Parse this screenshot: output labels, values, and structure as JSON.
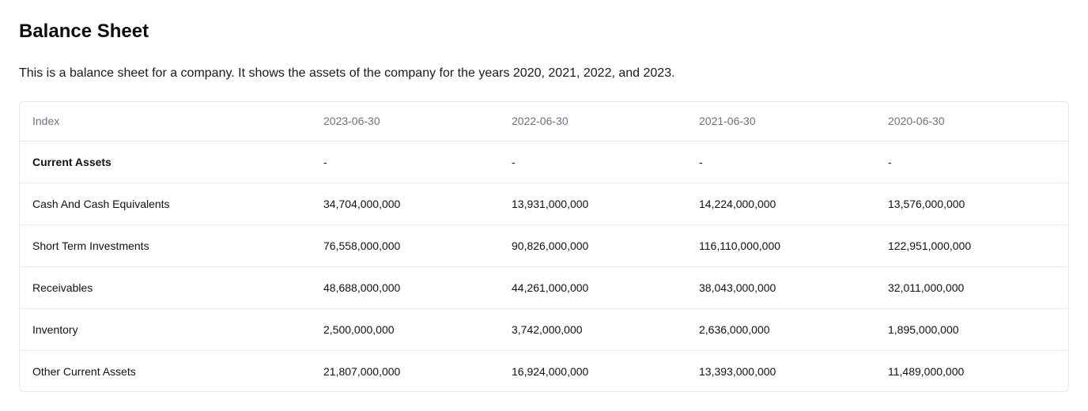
{
  "page": {
    "title": "Balance Sheet",
    "description": "This is a balance sheet for a company. It shows the assets of the company for the years 2020, 2021, 2022, and 2023."
  },
  "table": {
    "columns": [
      "Index",
      "2023-06-30",
      "2022-06-30",
      "2021-06-30",
      "2020-06-30"
    ],
    "rows": [
      {
        "label": "Current Assets",
        "values": [
          "-",
          "-",
          "-",
          "-"
        ],
        "bold": true
      },
      {
        "label": "Cash And Cash Equivalents",
        "values": [
          "34,704,000,000",
          "13,931,000,000",
          "14,224,000,000",
          "13,576,000,000"
        ]
      },
      {
        "label": "Short Term Investments",
        "values": [
          "76,558,000,000",
          "90,826,000,000",
          "116,110,000,000",
          "122,951,000,000"
        ]
      },
      {
        "label": "Receivables",
        "values": [
          "48,688,000,000",
          "44,261,000,000",
          "38,043,000,000",
          "32,011,000,000"
        ]
      },
      {
        "label": "Inventory",
        "values": [
          "2,500,000,000",
          "3,742,000,000",
          "2,636,000,000",
          "1,895,000,000"
        ]
      },
      {
        "label": "Other Current Assets",
        "values": [
          "21,807,000,000",
          "16,924,000,000",
          "13,393,000,000",
          "11,489,000,000"
        ]
      }
    ]
  },
  "colors": {
    "header_text": "#6b7280",
    "border": "#e5e7eb",
    "text": "#111111"
  }
}
